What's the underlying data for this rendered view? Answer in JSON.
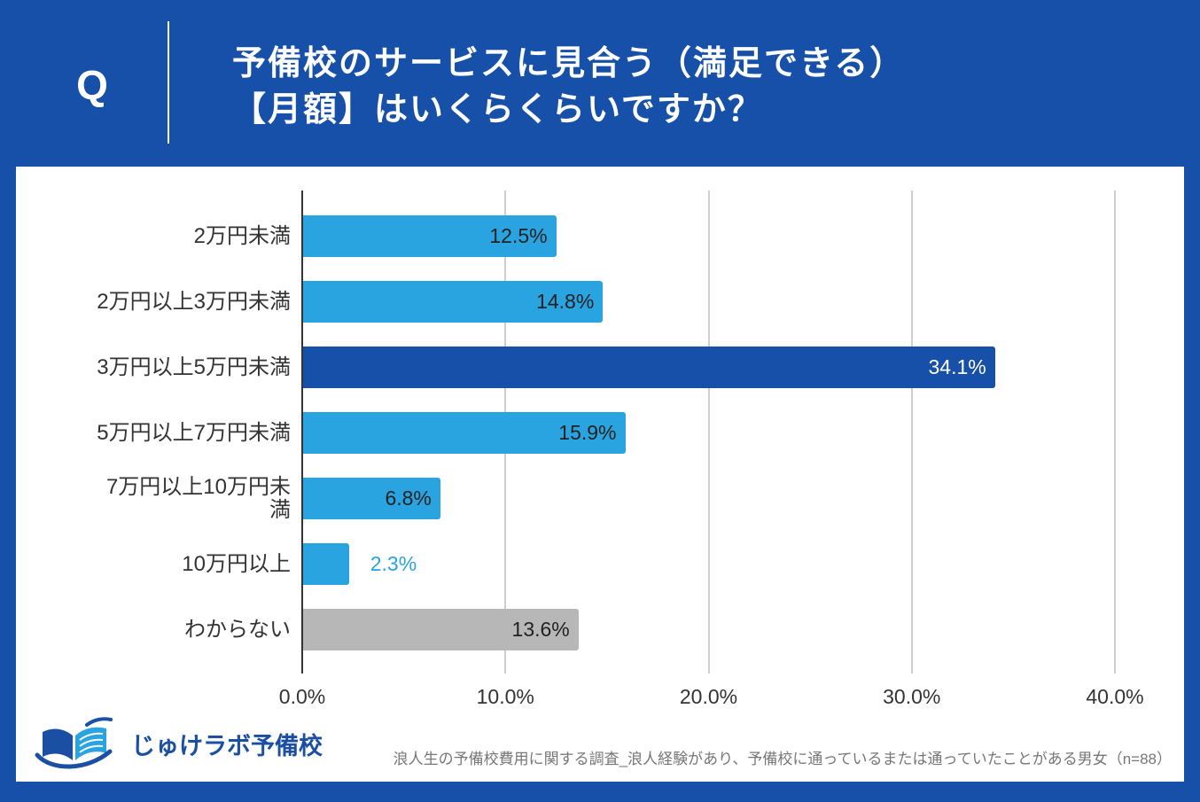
{
  "header": {
    "q_mark": "Q",
    "title_line1": "予備校のサービスに見合う（満足できる）",
    "title_line2": "【月額】はいくらくらいですか？"
  },
  "colors": {
    "background": "#1650a8",
    "panel": "#ffffff",
    "bar_primary": "#29a4e0",
    "bar_highlight": "#1650a8",
    "bar_unknown": "#b7b7b7",
    "text": "#333333"
  },
  "chart_data": {
    "type": "bar",
    "categories": [
      "2万円未満",
      "2万円以上3万円未満",
      "3万円以上5万円未満",
      "5万円以上7万円未満",
      "7万円以上10万円未満",
      "10万円以上",
      "わからない"
    ],
    "values": [
      12.5,
      14.8,
      34.1,
      15.9,
      6.8,
      2.3,
      13.6
    ],
    "data_labels": [
      "12.5%",
      "14.8%",
      "34.1%",
      "15.9%",
      "6.8%",
      "2.3%",
      "13.6%"
    ],
    "bar_colors": [
      "#29a4e0",
      "#29a4e0",
      "#1650a8",
      "#29a4e0",
      "#29a4e0",
      "#29a4e0",
      "#b7b7b7"
    ],
    "xlim": [
      0,
      40
    ],
    "ticks": [
      0,
      10,
      20,
      30,
      40
    ],
    "tick_labels": [
      "0.0%",
      "10.0%",
      "20.0%",
      "30.0%",
      "40.0%"
    ],
    "xlabel": "",
    "ylabel": "",
    "grid": true
  },
  "logo": {
    "text": "じゅけラボ予備校",
    "icon": "book-icon"
  },
  "footnote": "浪人生の予備校費用に関する調査_浪人経験があり、予備校に通っているまたは通っていたことがある男女（n=88）"
}
